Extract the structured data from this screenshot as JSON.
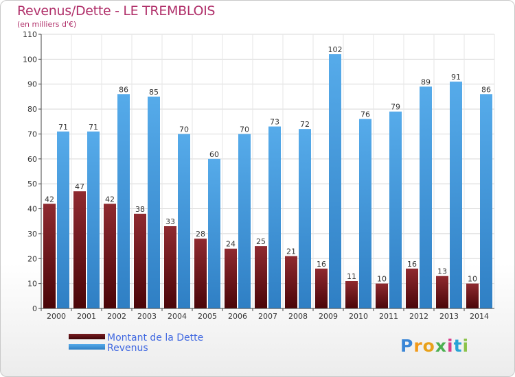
{
  "header": {
    "title": "Revenus/Dette - LE TREMBLOIS",
    "subtitle": "(en milliers d'€)"
  },
  "chart_data": {
    "type": "bar",
    "title": "Revenus/Dette - LE TREMBLOIS",
    "subtitle": "(en milliers d'€)",
    "xlabel": "",
    "ylabel": "",
    "ylim": [
      0,
      110
    ],
    "yticks": [
      0,
      10,
      20,
      30,
      40,
      50,
      60,
      70,
      80,
      90,
      100,
      110
    ],
    "grid": true,
    "legend_position": "bottom-left",
    "categories": [
      "2000",
      "2001",
      "2002",
      "2003",
      "2004",
      "2005",
      "2006",
      "2007",
      "2008",
      "2009",
      "2010",
      "2011",
      "2012",
      "2013",
      "2014"
    ],
    "series": [
      {
        "name": "Montant de la Dette",
        "color": "#7a1f24",
        "values": [
          42,
          47,
          42,
          38,
          33,
          28,
          24,
          25,
          21,
          16,
          11,
          10,
          16,
          13,
          10
        ]
      },
      {
        "name": "Revenus",
        "color": "#4a9fe0",
        "values": [
          71,
          71,
          86,
          85,
          70,
          60,
          70,
          73,
          72,
          102,
          76,
          79,
          89,
          91,
          86
        ]
      }
    ]
  },
  "legend": {
    "items": [
      {
        "label": "Montant de la Dette",
        "color": "#5a0d12"
      },
      {
        "label": "Revenus",
        "color": "#4a9fe0"
      }
    ]
  },
  "logo": {
    "letters": [
      "P",
      "r",
      "o",
      "x",
      "i",
      "t",
      "i"
    ],
    "colors": [
      "#3a86d6",
      "#f29a1a",
      "#e8a11a",
      "#4caf50",
      "#d93c8a",
      "#29a3d6",
      "#8bc34a"
    ]
  }
}
